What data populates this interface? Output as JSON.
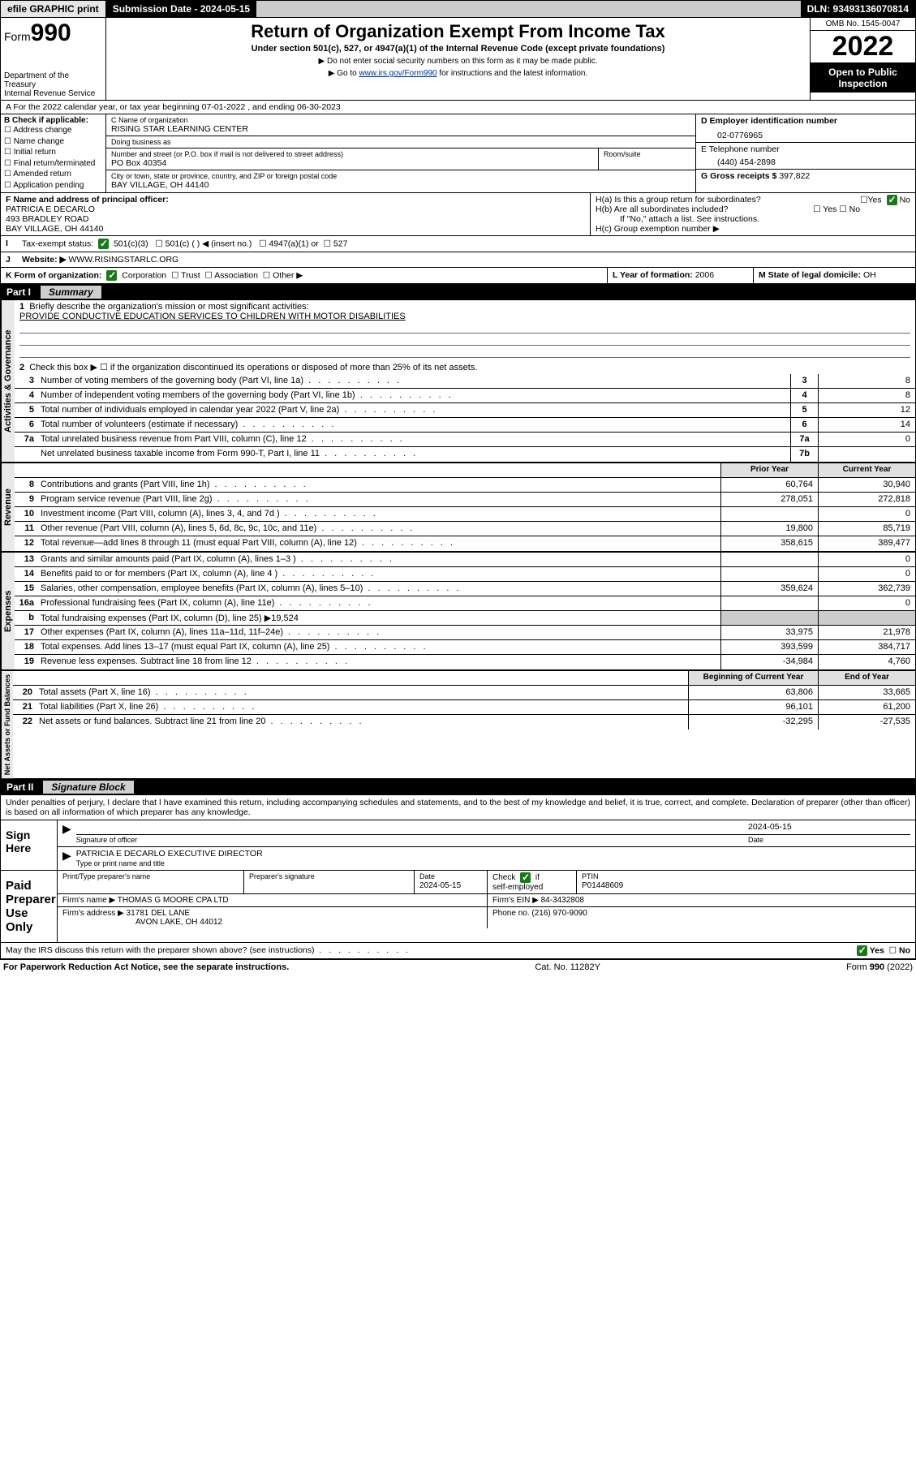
{
  "colors": {
    "accent_blue": "#003399",
    "check_green": "#1a7a1a",
    "grey_bg": "#e0e0e0",
    "rule_blue": "#4a6aa5"
  },
  "topbar": {
    "efile": "efile GRAPHIC print",
    "submission": "Submission Date - 2024-05-15",
    "dln": "DLN: 93493136070814"
  },
  "header": {
    "form_label": "Form",
    "form_number": "990",
    "dept": "Department of the Treasury",
    "irs": "Internal Revenue Service",
    "title": "Return of Organization Exempt From Income Tax",
    "sub": "Under section 501(c), 527, or 4947(a)(1) of the Internal Revenue Code (except private foundations)",
    "note1": "▶ Do not enter social security numbers on this form as it may be made public.",
    "note2_pre": "▶ Go to ",
    "note2_link": "www.irs.gov/Form990",
    "note2_post": " for instructions and the latest information.",
    "omb": "OMB No. 1545-0047",
    "year": "2022",
    "open": "Open to Public Inspection"
  },
  "A": {
    "line": "A For the 2022 calendar year, or tax year beginning 07-01-2022   , and ending 06-30-2023"
  },
  "B": {
    "title": "B Check if applicable:",
    "opts": [
      "Address change",
      "Name change",
      "Initial return",
      "Final return/terminated",
      "Amended return",
      "Application pending"
    ]
  },
  "C": {
    "name_lbl": "C Name of organization",
    "name": "RISING STAR LEARNING CENTER",
    "dba_lbl": "Doing business as",
    "dba": "",
    "street_lbl": "Number and street (or P.O. box if mail is not delivered to street address)",
    "street": "PO Box 40354",
    "room_lbl": "Room/suite",
    "city_lbl": "City or town, state or province, country, and ZIP or foreign postal code",
    "city": "BAY VILLAGE, OH  44140"
  },
  "D": {
    "lbl": "D Employer identification number",
    "val": "02-0776965"
  },
  "E": {
    "lbl": "E Telephone number",
    "val": "(440) 454-2898"
  },
  "G": {
    "lbl": "G Gross receipts $",
    "val": "397,822"
  },
  "F": {
    "lbl": "F Name and address of principal officer:",
    "name": "PATRICIA E DECARLO",
    "addr1": "493 BRADLEY ROAD",
    "addr2": "BAY VILLAGE, OH  44140"
  },
  "H": {
    "a": "H(a)  Is this a group return for subordinates?",
    "a_no": "No",
    "b": "H(b)  Are all subordinates included?",
    "b_note": "If \"No,\" attach a list. See instructions.",
    "c": "H(c)  Group exemption number ▶"
  },
  "I": {
    "lbl": "Tax-exempt status:",
    "o1": "501(c)(3)",
    "o2": "501(c) (   ) ◀ (insert no.)",
    "o3": "4947(a)(1) or",
    "o4": "527"
  },
  "J": {
    "lbl": "Website: ▶",
    "val": "WWW.RISINGSTARLC.ORG"
  },
  "K": {
    "lbl": "K Form of organization:",
    "corp": "Corporation",
    "trust": "Trust",
    "assoc": "Association",
    "other": "Other ▶"
  },
  "L": {
    "lbl": "L Year of formation:",
    "val": "2006"
  },
  "M": {
    "lbl": "M State of legal domicile:",
    "val": "OH"
  },
  "partI": {
    "title": "Summary",
    "mission_lbl": "Briefly describe the organization's mission or most significant activities:",
    "mission": "PROVIDE CONDUCTIVE EDUCATION SERVICES TO CHILDREN WITH MOTOR DISABILITIES",
    "line2": "Check this box ▶ ☐ if the organization discontinued its operations or disposed of more than 25% of its net assets.",
    "gov": [
      {
        "n": "3",
        "d": "Number of voting members of the governing body (Part VI, line 1a)",
        "idx": "3",
        "v": "8"
      },
      {
        "n": "4",
        "d": "Number of independent voting members of the governing body (Part VI, line 1b)",
        "idx": "4",
        "v": "8"
      },
      {
        "n": "5",
        "d": "Total number of individuals employed in calendar year 2022 (Part V, line 2a)",
        "idx": "5",
        "v": "12"
      },
      {
        "n": "6",
        "d": "Total number of volunteers (estimate if necessary)",
        "idx": "6",
        "v": "14"
      },
      {
        "n": "7a",
        "d": "Total unrelated business revenue from Part VIII, column (C), line 12",
        "idx": "7a",
        "v": "0"
      },
      {
        "n": "",
        "d": "Net unrelated business taxable income from Form 990-T, Part I, line 11",
        "idx": "7b",
        "v": ""
      }
    ],
    "hdr_prior": "Prior Year",
    "hdr_curr": "Current Year",
    "rev": [
      {
        "n": "8",
        "d": "Contributions and grants (Part VIII, line 1h)",
        "p": "60,764",
        "c": "30,940"
      },
      {
        "n": "9",
        "d": "Program service revenue (Part VIII, line 2g)",
        "p": "278,051",
        "c": "272,818"
      },
      {
        "n": "10",
        "d": "Investment income (Part VIII, column (A), lines 3, 4, and 7d )",
        "p": "",
        "c": "0"
      },
      {
        "n": "11",
        "d": "Other revenue (Part VIII, column (A), lines 5, 6d, 8c, 9c, 10c, and 11e)",
        "p": "19,800",
        "c": "85,719"
      },
      {
        "n": "12",
        "d": "Total revenue—add lines 8 through 11 (must equal Part VIII, column (A), line 12)",
        "p": "358,615",
        "c": "389,477"
      }
    ],
    "exp": [
      {
        "n": "13",
        "d": "Grants and similar amounts paid (Part IX, column (A), lines 1–3 )",
        "p": "",
        "c": "0"
      },
      {
        "n": "14",
        "d": "Benefits paid to or for members (Part IX, column (A), line 4 )",
        "p": "",
        "c": "0"
      },
      {
        "n": "15",
        "d": "Salaries, other compensation, employee benefits (Part IX, column (A), lines 5–10)",
        "p": "359,624",
        "c": "362,739"
      },
      {
        "n": "16a",
        "d": "Professional fundraising fees (Part IX, column (A), line 11e)",
        "p": "",
        "c": "0"
      },
      {
        "n": "b",
        "d": "Total fundraising expenses (Part IX, column (D), line 25) ▶19,524",
        "p": null,
        "c": null
      },
      {
        "n": "17",
        "d": "Other expenses (Part IX, column (A), lines 11a–11d, 11f–24e)",
        "p": "33,975",
        "c": "21,978"
      },
      {
        "n": "18",
        "d": "Total expenses. Add lines 13–17 (must equal Part IX, column (A), line 25)",
        "p": "393,599",
        "c": "384,717"
      },
      {
        "n": "19",
        "d": "Revenue less expenses. Subtract line 18 from line 12",
        "p": "-34,984",
        "c": "4,760"
      }
    ],
    "hdr_beg": "Beginning of Current Year",
    "hdr_end": "End of Year",
    "net": [
      {
        "n": "20",
        "d": "Total assets (Part X, line 16)",
        "p": "63,806",
        "c": "33,665"
      },
      {
        "n": "21",
        "d": "Total liabilities (Part X, line 26)",
        "p": "96,101",
        "c": "61,200"
      },
      {
        "n": "22",
        "d": "Net assets or fund balances. Subtract line 21 from line 20",
        "p": "-32,295",
        "c": "-27,535"
      }
    ],
    "side": {
      "gov": "Activities & Governance",
      "rev": "Revenue",
      "exp": "Expenses",
      "net": "Net Assets or Fund Balances"
    }
  },
  "partII": {
    "title": "Signature Block",
    "decl": "Under penalties of perjury, I declare that I have examined this return, including accompanying schedules and statements, and to the best of my knowledge and belief, it is true, correct, and complete. Declaration of preparer (other than officer) is based on all information of which preparer has any knowledge.",
    "sign_here": "Sign Here",
    "sig_officer_lbl": "Signature of officer",
    "sig_date": "2024-05-15",
    "date_lbl": "Date",
    "officer": "PATRICIA E DECARLO  EXECUTIVE DIRECTOR",
    "officer_lbl": "Type or print name and title",
    "paid": "Paid Preparer Use Only",
    "p_name_lbl": "Print/Type preparer's name",
    "p_sig_lbl": "Preparer's signature",
    "p_date": "2024-05-15",
    "p_check": "Check ☑ if self-employed",
    "p_ptin_lbl": "PTIN",
    "p_ptin": "P01448609",
    "firm_name_lbl": "Firm's name    ▶",
    "firm_name": "THOMAS G MOORE CPA LTD",
    "firm_ein_lbl": "Firm's EIN ▶",
    "firm_ein": "84-3432808",
    "firm_addr_lbl": "Firm's address ▶",
    "firm_addr1": "31781 DEL LANE",
    "firm_addr2": "AVON LAKE, OH  44012",
    "phone_lbl": "Phone no.",
    "phone": "(216) 970-9090",
    "discuss": "May the IRS discuss this return with the preparer shown above? (see instructions)",
    "yes": "Yes",
    "no": "No"
  },
  "footer": {
    "l": "For Paperwork Reduction Act Notice, see the separate instructions.",
    "c": "Cat. No. 11282Y",
    "r": "Form 990 (2022)"
  }
}
